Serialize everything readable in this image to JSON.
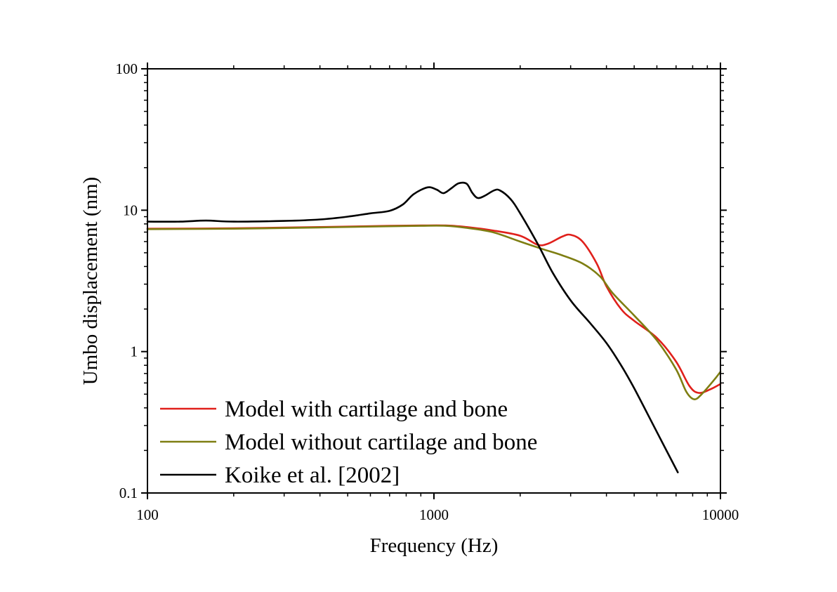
{
  "chart_data": {
    "type": "line",
    "xlabel": "Frequency (Hz)",
    "ylabel": "Umbo displacement (nm)",
    "xscale": "log",
    "yscale": "log",
    "xlim": [
      100,
      10000
    ],
    "ylim": [
      0.1,
      100
    ],
    "x_ticks": [
      "100",
      "1000",
      "10000"
    ],
    "y_ticks": [
      "0.1",
      "1",
      "10",
      "100"
    ],
    "grid": false,
    "legend_position": "bottom-left",
    "series": [
      {
        "name": "Model with cartilage and bone",
        "color": "#e0201b",
        "points": [
          [
            100,
            7.4
          ],
          [
            200,
            7.45
          ],
          [
            400,
            7.6
          ],
          [
            700,
            7.75
          ],
          [
            900,
            7.8
          ],
          [
            1100,
            7.8
          ],
          [
            1300,
            7.6
          ],
          [
            1600,
            7.2
          ],
          [
            2000,
            6.6
          ],
          [
            2300,
            5.7
          ],
          [
            2500,
            5.8
          ],
          [
            2800,
            6.5
          ],
          [
            3000,
            6.7
          ],
          [
            3300,
            6.0
          ],
          [
            3700,
            4.2
          ],
          [
            4000,
            2.9
          ],
          [
            4500,
            2.0
          ],
          [
            5000,
            1.65
          ],
          [
            6000,
            1.25
          ],
          [
            7000,
            0.85
          ],
          [
            7800,
            0.57
          ],
          [
            8400,
            0.51
          ],
          [
            9200,
            0.54
          ],
          [
            10000,
            0.59
          ]
        ]
      },
      {
        "name": "Model without cartilage and bone",
        "color": "#7e7e12",
        "points": [
          [
            100,
            7.35
          ],
          [
            200,
            7.4
          ],
          [
            400,
            7.55
          ],
          [
            700,
            7.7
          ],
          [
            900,
            7.75
          ],
          [
            1100,
            7.75
          ],
          [
            1300,
            7.5
          ],
          [
            1600,
            7.0
          ],
          [
            2000,
            6.0
          ],
          [
            2400,
            5.3
          ],
          [
            2800,
            4.8
          ],
          [
            3300,
            4.2
          ],
          [
            3800,
            3.4
          ],
          [
            4200,
            2.6
          ],
          [
            5000,
            1.8
          ],
          [
            6000,
            1.2
          ],
          [
            7000,
            0.75
          ],
          [
            7600,
            0.52
          ],
          [
            8100,
            0.46
          ],
          [
            8600,
            0.5
          ],
          [
            9500,
            0.63
          ],
          [
            10000,
            0.72
          ]
        ]
      },
      {
        "name": "Koike et al. [2002]",
        "color": "#000000",
        "points": [
          [
            100,
            8.3
          ],
          [
            130,
            8.3
          ],
          [
            160,
            8.45
          ],
          [
            200,
            8.3
          ],
          [
            300,
            8.4
          ],
          [
            400,
            8.6
          ],
          [
            500,
            9.0
          ],
          [
            600,
            9.5
          ],
          [
            700,
            9.9
          ],
          [
            780,
            11.0
          ],
          [
            850,
            13.0
          ],
          [
            950,
            14.5
          ],
          [
            1020,
            14.0
          ],
          [
            1080,
            13.2
          ],
          [
            1150,
            14.3
          ],
          [
            1220,
            15.5
          ],
          [
            1300,
            15.4
          ],
          [
            1360,
            13.3
          ],
          [
            1420,
            12.2
          ],
          [
            1500,
            12.6
          ],
          [
            1620,
            13.8
          ],
          [
            1700,
            13.8
          ],
          [
            1850,
            12.0
          ],
          [
            2000,
            9.5
          ],
          [
            2300,
            5.8
          ],
          [
            2600,
            3.6
          ],
          [
            3000,
            2.3
          ],
          [
            3500,
            1.6
          ],
          [
            4000,
            1.15
          ],
          [
            4500,
            0.8
          ],
          [
            5000,
            0.55
          ],
          [
            6000,
            0.27
          ],
          [
            7100,
            0.14
          ]
        ]
      }
    ]
  }
}
